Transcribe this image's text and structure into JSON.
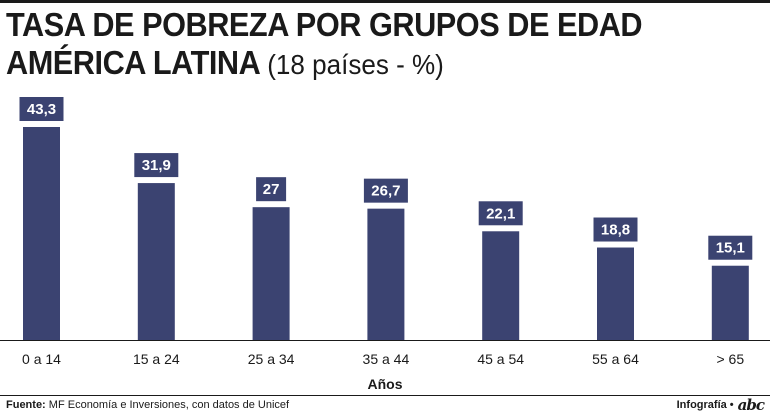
{
  "header": {
    "title_line1": "TASA DE POBREZA POR GRUPOS DE EDAD",
    "title_line2": "AMÉRICA LATINA",
    "title_subtitle": "(18 países - %)"
  },
  "chart_data": {
    "type": "bar",
    "categories": [
      "0 a 14",
      "15 a 24",
      "25 a 34",
      "35 a 44",
      "45 a 54",
      "55 a 64",
      "> 65"
    ],
    "values": [
      43.3,
      31.9,
      27,
      26.7,
      22.1,
      18.8,
      15.1
    ],
    "value_labels": [
      "43,3",
      "31,9",
      "27",
      "26,7",
      "22,1",
      "18,8",
      "15,1"
    ],
    "xlabel": "Años",
    "ylabel": "",
    "ylim": [
      0,
      43.3
    ],
    "grid": false,
    "bar_color": "#3b4371"
  },
  "footer": {
    "source_label": "Fuente:",
    "source_text": "MF Economía e Inversiones, con datos de Unicef",
    "credit": "Infografía •",
    "logo": "abc"
  },
  "colors": {
    "bar": "#3b4371",
    "text": "#1a1a1a"
  }
}
